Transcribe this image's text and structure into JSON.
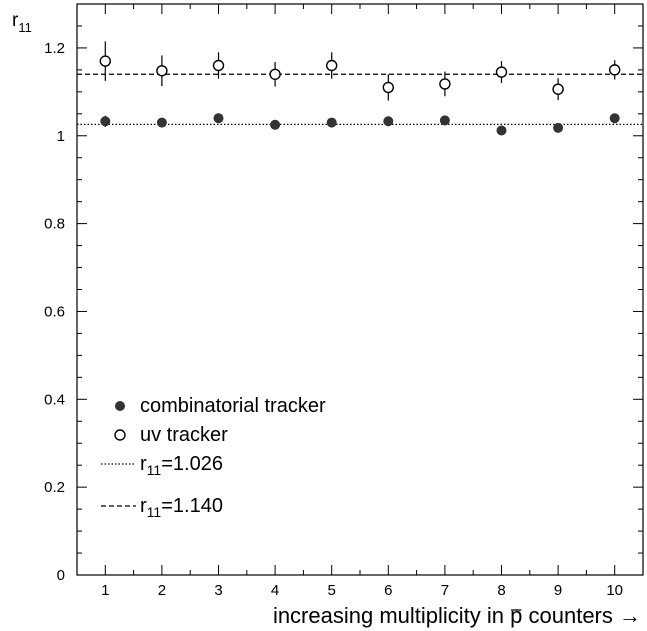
{
  "chart_data": {
    "type": "scatter",
    "ylabel": "r",
    "ylabel_sub": "11",
    "xlabel_prefix": "increasing multiplicity in ",
    "xlabel_symbol": "p",
    "xlabel_suffix": " counters →",
    "xlim": [
      0.5,
      10.5
    ],
    "ylim": [
      0,
      1.3
    ],
    "xticks": [
      1,
      2,
      3,
      4,
      5,
      6,
      7,
      8,
      9,
      10
    ],
    "yticks": [
      0,
      0.2,
      0.4,
      0.6,
      0.8,
      1,
      1.2
    ],
    "ytick_labels": [
      "0",
      "0.2",
      "0.4",
      "0.6",
      "0.8",
      "1",
      "1.2"
    ],
    "series": [
      {
        "name": "combinatorial tracker",
        "marker": "filled-circle",
        "x": [
          1,
          2,
          3,
          4,
          5,
          6,
          7,
          8,
          9,
          10
        ],
        "y": [
          1.033,
          1.03,
          1.04,
          1.025,
          1.03,
          1.033,
          1.035,
          1.012,
          1.018,
          1.04
        ],
        "yerr": [
          0.013,
          0.011,
          0.011,
          0.009,
          0.009,
          0.011,
          0.011,
          0.009,
          0.009,
          0.011
        ]
      },
      {
        "name": "uv tracker",
        "marker": "open-circle",
        "x": [
          1,
          2,
          3,
          4,
          5,
          6,
          7,
          8,
          9,
          10
        ],
        "y": [
          1.17,
          1.148,
          1.16,
          1.14,
          1.16,
          1.11,
          1.118,
          1.145,
          1.106,
          1.15
        ],
        "yerr": [
          0.045,
          0.035,
          0.03,
          0.028,
          0.03,
          0.03,
          0.028,
          0.025,
          0.025,
          0.022
        ]
      }
    ],
    "reference_lines": [
      {
        "label_main": "r",
        "label_sub": "11",
        "label_value": "=1.026",
        "y": 1.026,
        "style": "dotted"
      },
      {
        "label_main": "r",
        "label_sub": "11",
        "label_value": "=1.140",
        "y": 1.14,
        "style": "dashed"
      }
    ],
    "legend_position": "bottom-left",
    "grid": false
  }
}
